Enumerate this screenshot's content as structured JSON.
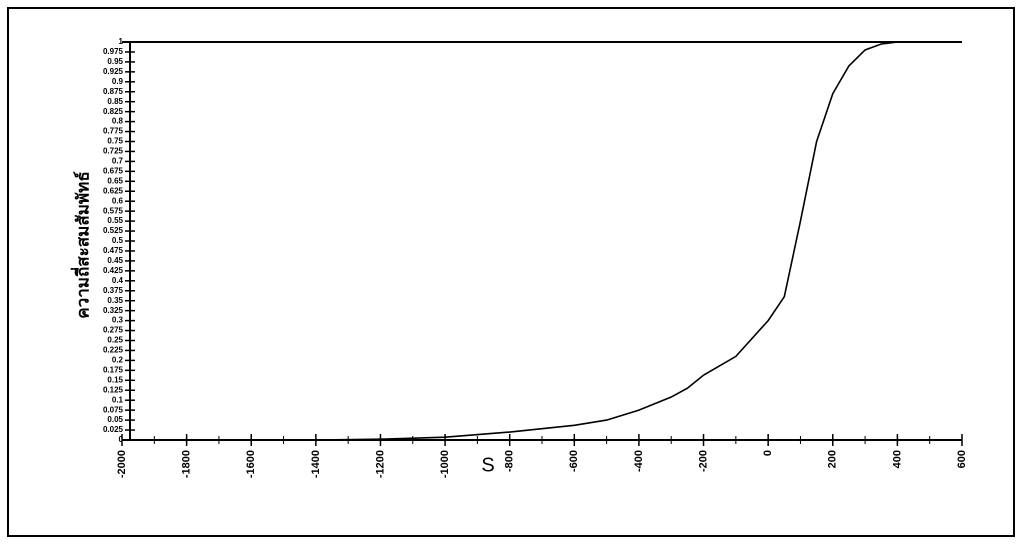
{
  "chart_data": {
    "type": "line",
    "x_label": "S",
    "y_label": "ความถี่สะสมสัมพัทธ์",
    "x": [
      -1400,
      -1200,
      -1000,
      -800,
      -600,
      -500,
      -400,
      -300,
      -250,
      -200,
      -100,
      0,
      50,
      100,
      150,
      200,
      250,
      300,
      350,
      400,
      500
    ],
    "series": [
      {
        "color": "#000000",
        "values": [
          0,
          0.002,
          0.007,
          0.02,
          0.037,
          0.05,
          0.075,
          0.108,
          0.13,
          0.163,
          0.21,
          0.3,
          0.36,
          0.55,
          0.75,
          0.87,
          0.94,
          0.98,
          0.995,
          1,
          1
        ]
      }
    ],
    "xlim": [
      -2000,
      600
    ],
    "xticks": [
      -2000,
      -1800,
      -1600,
      -1400,
      -1200,
      -1000,
      -800,
      -600,
      -400,
      -200,
      0,
      200,
      400,
      600
    ],
    "ylim": [
      0,
      1
    ],
    "yticks": [
      0,
      0.025,
      0.05,
      0.075,
      0.1,
      0.125,
      0.15,
      0.175,
      0.2,
      0.225,
      0.25,
      0.275,
      0.3,
      0.325,
      0.35,
      0.375,
      0.4,
      0.425,
      0.45,
      0.475,
      0.5,
      0.525,
      0.55,
      0.575,
      0.6,
      0.625,
      0.65,
      0.675,
      0.7,
      0.725,
      0.75,
      0.775,
      0.8,
      0.825,
      0.85,
      0.875,
      0.9,
      0.925,
      0.95,
      0.975,
      1
    ]
  }
}
